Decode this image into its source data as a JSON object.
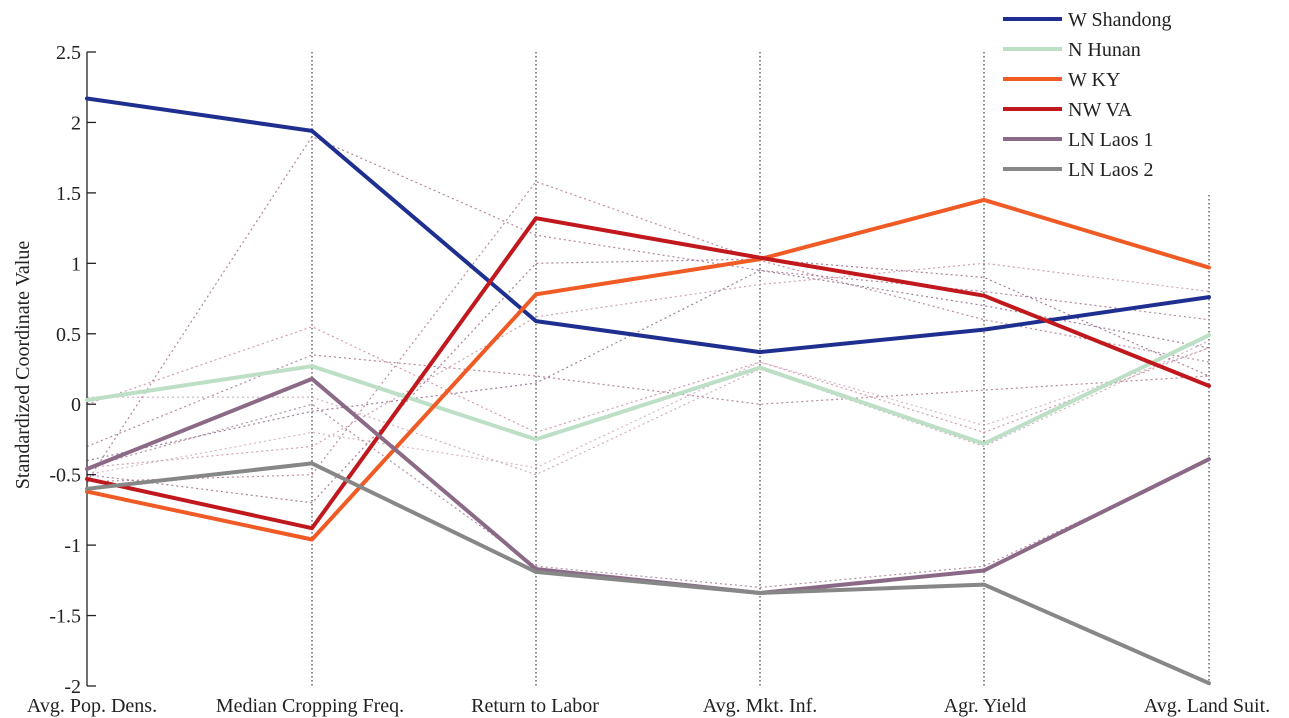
{
  "chart_data": {
    "type": "line",
    "subtype": "parallel-coordinates",
    "ylabel": "Standardized Coordinate Value",
    "ylim": [
      -2,
      2.5
    ],
    "yticks": [
      "2.5",
      "2",
      "1.5",
      "1",
      "0.5",
      "0",
      "-0.5",
      "-1",
      "-1.5",
      "-2"
    ],
    "ytick_values": [
      2.5,
      2,
      1.5,
      1,
      0.5,
      0,
      -0.5,
      -1,
      -1.5,
      -2
    ],
    "categories": [
      "Avg. Pop. Dens.",
      "Median Cropping Freq.",
      "Return to Labor",
      "Avg. Mkt. Inf.",
      "Agr. Yield",
      "Avg. Land Suit."
    ],
    "legend_position": "top-right",
    "series": [
      {
        "name": "W Shandong",
        "color": "#1f2f8f",
        "values": [
          2.17,
          1.94,
          0.59,
          0.37,
          0.53,
          0.76
        ]
      },
      {
        "name": "N Hunan",
        "color": "#bcdfc6",
        "values": [
          0.03,
          0.27,
          -0.25,
          0.26,
          -0.28,
          0.49
        ]
      },
      {
        "name": "W KY",
        "color": "#f05a24",
        "values": [
          -0.62,
          -0.96,
          0.78,
          1.03,
          1.45,
          0.97
        ]
      },
      {
        "name": "NW VA",
        "color": "#c0181c",
        "values": [
          -0.53,
          -0.88,
          1.32,
          1.04,
          0.77,
          0.13
        ]
      },
      {
        "name": "LN Laos 1",
        "color": "#8a6a86",
        "values": [
          -0.46,
          0.18,
          -1.17,
          -1.34,
          -1.18,
          -0.39
        ]
      },
      {
        "name": "LN Laos 2",
        "color": "#878787",
        "values": [
          -0.6,
          -0.42,
          -1.19,
          -1.34,
          -1.28,
          -1.98
        ]
      }
    ],
    "background_series": [
      {
        "color": "#c98b9c",
        "values": [
          0.0,
          0.55,
          -0.2,
          0.3,
          -0.2,
          0.4
        ]
      },
      {
        "color": "#a77390",
        "values": [
          -0.3,
          0.35,
          0.2,
          0.0,
          0.1,
          0.2
        ]
      },
      {
        "color": "#c9a0b4",
        "values": [
          0.05,
          0.05,
          -0.5,
          0.25,
          -0.3,
          0.45
        ]
      },
      {
        "color": "#b07890",
        "values": [
          -0.55,
          -0.5,
          1.58,
          1.02,
          0.6,
          0.3
        ]
      },
      {
        "color": "#8e6a8a",
        "values": [
          -0.4,
          -0.05,
          0.15,
          0.95,
          0.7,
          0.4
        ]
      },
      {
        "color": "#c590a6",
        "values": [
          -0.45,
          -0.3,
          0.62,
          0.85,
          1.0,
          0.8
        ]
      },
      {
        "color": "#a5708f",
        "values": [
          -0.55,
          1.9,
          1.2,
          0.95,
          0.8,
          0.6
        ]
      },
      {
        "color": "#9a6a8a",
        "values": [
          -0.5,
          -0.7,
          1.0,
          1.03,
          0.9,
          0.2
        ]
      },
      {
        "color": "#d0a8bc",
        "values": [
          -0.5,
          -0.2,
          -0.45,
          0.3,
          -0.15,
          0.4
        ]
      },
      {
        "color": "#a87a94",
        "values": [
          -0.45,
          0.0,
          -1.15,
          -1.3,
          -1.15,
          -0.4
        ]
      }
    ]
  }
}
